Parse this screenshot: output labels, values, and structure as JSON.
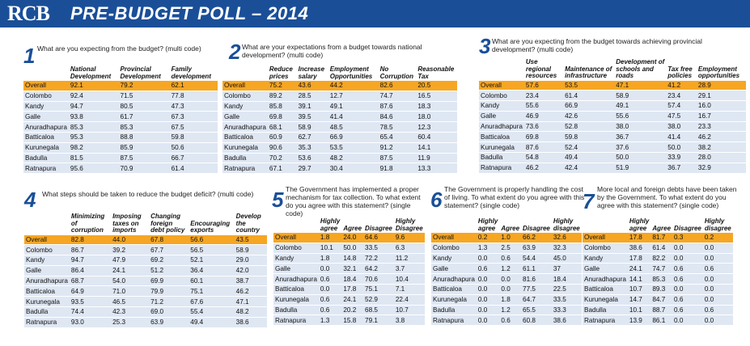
{
  "header": {
    "logo": "RCB",
    "title": "PRE-BUDGET POLL – 2014"
  },
  "panels": [
    {
      "number": "1",
      "question": "What are you expecting from the budget? (multi code)",
      "columns": [
        "",
        "National Development",
        "Provincial Development",
        "Family development"
      ],
      "rows": [
        [
          "Overall",
          "92.1",
          "79.2",
          "62.1"
        ],
        [
          "Colombo",
          "92.4",
          "71.5",
          "77.8"
        ],
        [
          "Kandy",
          "94.7",
          "80.5",
          "47.3"
        ],
        [
          "Galle",
          "93.8",
          "61.7",
          "67.3"
        ],
        [
          "Anuradhapura",
          "85.3",
          "85.3",
          "67.5"
        ],
        [
          "Batticaloa",
          "95.3",
          "88.8",
          "59.8"
        ],
        [
          "Kurunegala",
          "98.2",
          "85.9",
          "50.6"
        ],
        [
          "Badulla",
          "81.5",
          "87.5",
          "66.7"
        ],
        [
          "Ratnapura",
          "95.6",
          "70.9",
          "61.4"
        ]
      ]
    },
    {
      "number": "2",
      "question": "What are your expectations from a budget towards national development? (multi code)",
      "columns": [
        "",
        "Reduce prices",
        "Increase salary",
        "Employment Opportunities",
        "No Corruption",
        "Reasonable Tax"
      ],
      "rows": [
        [
          "Overall",
          "75.2",
          "43.6",
          "44.2",
          "82.6",
          "20.5"
        ],
        [
          "Colombo",
          "89.2",
          "28.5",
          "12.7",
          "74.7",
          "16.5"
        ],
        [
          "Kandy",
          "85.8",
          "39.1",
          "49.1",
          "87.6",
          "18.3"
        ],
        [
          "Galle",
          "69.8",
          "39.5",
          "41.4",
          "84.6",
          "18.0"
        ],
        [
          "Anuradhapura",
          "68.1",
          "58.9",
          "48.5",
          "78.5",
          "12.3"
        ],
        [
          "Batticaloa",
          "60.9",
          "62.7",
          "66.9",
          "65.4",
          "60.4"
        ],
        [
          "Kurunegala",
          "90.6",
          "35.3",
          "53.5",
          "91.2",
          "14.1"
        ],
        [
          "Badulla",
          "70.2",
          "53.6",
          "48.2",
          "87.5",
          "11.9"
        ],
        [
          "Ratnapura",
          "67.1",
          "29.7",
          "30.4",
          "91.8",
          "13.3"
        ]
      ]
    },
    {
      "number": "3",
      "question": "What are you expecting from the budget towards achieving provincial development? (multi code)",
      "columns": [
        "",
        "Use regional resources",
        "Maintenance of infrastructure",
        "Development of schools and roads",
        "Tax free policies",
        "Employment opportunities"
      ],
      "rows": [
        [
          "Overall",
          "57.6",
          "53.5",
          "47.1",
          "41.2",
          "28.9"
        ],
        [
          "Colombo",
          "23.4",
          "61.4",
          "58.9",
          "23.4",
          "29.1"
        ],
        [
          "Kandy",
          "55.6",
          "66.9",
          "49.1",
          "57.4",
          "16.0"
        ],
        [
          "Galle",
          "46.9",
          "42.6",
          "55.6",
          "47.5",
          "16.7"
        ],
        [
          "Anuradhapura",
          "73.6",
          "52.8",
          "38.0",
          "38.0",
          "23.3"
        ],
        [
          "Batticaloa",
          "69.8",
          "59.8",
          "36.7",
          "41.4",
          "46.2"
        ],
        [
          "Kurunegala",
          "87.6",
          "52.4",
          "37.6",
          "50.0",
          "38.2"
        ],
        [
          "Badulla",
          "54.8",
          "49.4",
          "50.0",
          "33.9",
          "28.0"
        ],
        [
          "Ratnapura",
          "46.2",
          "42.4",
          "51.9",
          "36.7",
          "32.9"
        ]
      ]
    },
    {
      "number": "4",
      "question": "What steps should be taken to reduce the budget deficit? (multi code)",
      "columns": [
        "",
        "Minimizing of corruption",
        "Imposing taxes on imports",
        "Changing foreign debt policy",
        "Encouraging exports",
        "Develop the country"
      ],
      "rows": [
        [
          "Overall",
          "82.8",
          "44.0",
          "67.8",
          "56.6",
          "43.5"
        ],
        [
          "Colombo",
          "86.7",
          "39.2",
          "67.7",
          "56.5",
          "58.9"
        ],
        [
          "Kandy",
          "94.7",
          "47.9",
          "69.2",
          "52.1",
          "29.0"
        ],
        [
          "Galle",
          "86.4",
          "24.1",
          "51.2",
          "36.4",
          "42.0"
        ],
        [
          "Anuradhapura",
          "68.7",
          "54.0",
          "69.9",
          "60.1",
          "38.7"
        ],
        [
          "Batticaloa",
          "64.9",
          "71.0",
          "79.9",
          "75.1",
          "46.2"
        ],
        [
          "Kurunegala",
          "93.5",
          "46.5",
          "71.2",
          "67.6",
          "47.1"
        ],
        [
          "Badulla",
          "74.4",
          "42.3",
          "69.0",
          "55.4",
          "48.2"
        ],
        [
          "Ratnapura",
          "93.0",
          "25.3",
          "63.9",
          "49.4",
          "38.6"
        ]
      ]
    },
    {
      "number": "5",
      "question": "The Government has implemented a proper mechanism for tax collection. To what extent do you agree with this statement? (single code)",
      "columns": [
        "",
        "Highly agree",
        "Agree",
        "Disagree",
        "Highly Disagree"
      ],
      "rows": [
        [
          "Overall",
          "1.8",
          "24.0",
          "64.6",
          "9.6"
        ],
        [
          "Colombo",
          "10.1",
          "50.0",
          "33.5",
          "6.3"
        ],
        [
          "Kandy",
          "1.8",
          "14.8",
          "72.2",
          "11.2"
        ],
        [
          "Galle",
          "0.0",
          "32.1",
          "64.2",
          "3.7"
        ],
        [
          "Anuradhapura",
          "0.6",
          "18.4",
          "70.6",
          "10.4"
        ],
        [
          "Batticaloa",
          "0.0",
          "17.8",
          "75.1",
          "7.1"
        ],
        [
          "Kurunegala",
          "0.6",
          "24.1",
          "52.9",
          "22.4"
        ],
        [
          "Badulla",
          "0.6",
          "20.2",
          "68.5",
          "10.7"
        ],
        [
          "Ratnapura",
          "1.3",
          "15.8",
          "79.1",
          "3.8"
        ]
      ]
    },
    {
      "number": "6",
      "question": "The Government is properly handling the cost of living. To what extent do you agree with this statement? (single code)",
      "columns": [
        "",
        "Highly agree",
        "Agree",
        "Disagree",
        "Highly disagree"
      ],
      "rows": [
        [
          "Overall",
          "0.2",
          "1.0",
          "66.2",
          "32.6"
        ],
        [
          "Colombo",
          "1.3",
          "2.5",
          "63.9",
          "32.3"
        ],
        [
          "Kandy",
          "0.0",
          "0.6",
          "54.4",
          "45.0"
        ],
        [
          "Galle",
          "0.6",
          "1.2",
          "61.1",
          "37"
        ],
        [
          "Anuradhapura",
          "0.0",
          "0.0",
          "81.6",
          "18.4"
        ],
        [
          "Batticaloa",
          "0.0",
          "0.0",
          "77.5",
          "22.5"
        ],
        [
          "Kurunegala",
          "0.0",
          "1.8",
          "64.7",
          "33.5"
        ],
        [
          "Badulla",
          "0.0",
          "1.2",
          "65.5",
          "33.3"
        ],
        [
          "Ratnapura",
          "0.0",
          "0.6",
          "60.8",
          "38.6"
        ]
      ]
    },
    {
      "number": "7",
      "question": "More local and foreign debts have been taken by the Government. To what extent do you agree with this statement? (single code)",
      "columns": [
        "",
        "Highly agree",
        "Agree",
        "Disagree",
        "Highly disagree"
      ],
      "rows": [
        [
          "Overall",
          "17.8",
          "81.7",
          "0.3",
          "0.2"
        ],
        [
          "Colombo",
          "38.6",
          "61.4",
          "0.0",
          "0.0"
        ],
        [
          "Kandy",
          "17.8",
          "82.2",
          "0.0",
          "0.0"
        ],
        [
          "Galle",
          "24.1",
          "74.7",
          "0.6",
          "0.6"
        ],
        [
          "Anuradhapura",
          "14.1",
          "85.3",
          "0.6",
          "0.0"
        ],
        [
          "Batticaloa",
          "10.7",
          "89.3",
          "0.0",
          "0.0"
        ],
        [
          "Kurunegala",
          "14.7",
          "84.7",
          "0.6",
          "0.0"
        ],
        [
          "Badulla",
          "10.1",
          "88.7",
          "0.6",
          "0.6"
        ],
        [
          "Ratnapura",
          "13.9",
          "86.1",
          "0.0",
          "0.0"
        ]
      ]
    }
  ],
  "colors": {
    "brand": "#1a4f98",
    "highlight": "#f6a623",
    "row": "#dfe7f3"
  }
}
